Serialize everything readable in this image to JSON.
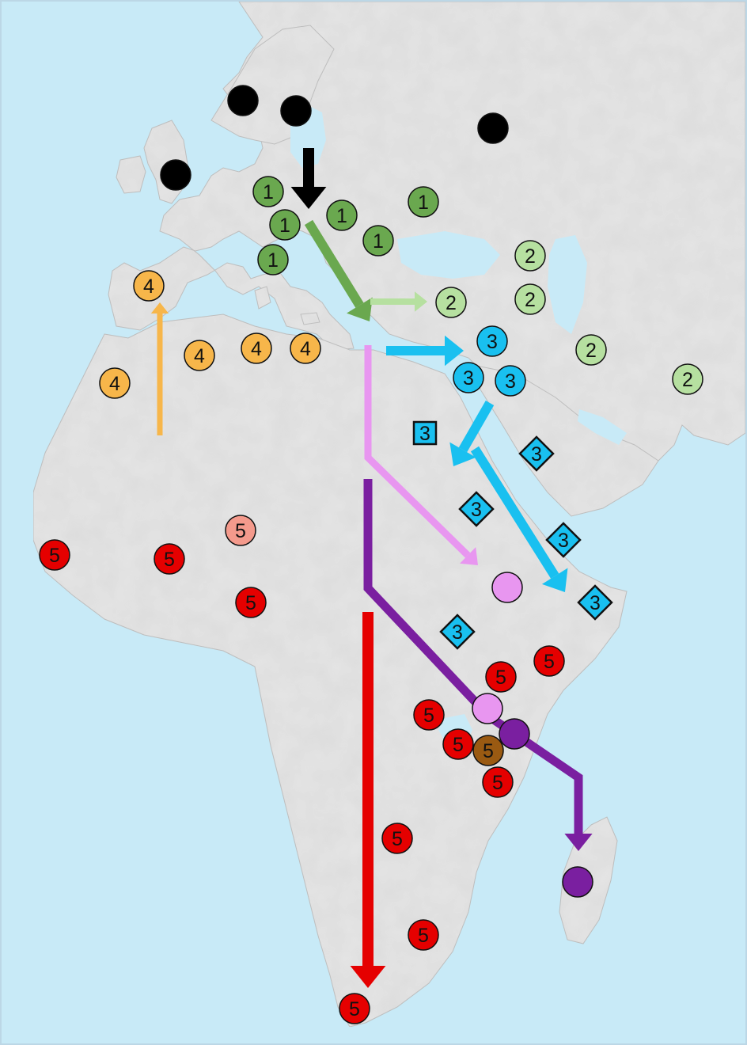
{
  "colors": {
    "ocean": "#c8eaf7",
    "land": "#e5e5e5",
    "land_shade": "#d4d4d4",
    "land_edge": "#bdbdbd",
    "black": "#000000",
    "group1": "#6aa84f",
    "group2": "#b6e0a0",
    "group3": "#19c0f0",
    "group4": "#f7b64a",
    "group5": "#e50000",
    "group5_light": "#f49a8c",
    "group5_brown": "#9a5a12",
    "pink": "#e896f0",
    "purple": "#7a1fa0"
  },
  "markers": [
    {
      "shape": "circle",
      "fill": "black",
      "label": ""
    },
    {
      "shape": "circle",
      "fill": "black",
      "label": ""
    },
    {
      "shape": "circle",
      "fill": "black",
      "label": ""
    },
    {
      "shape": "circle",
      "fill": "black",
      "label": ""
    },
    {
      "shape": "circle",
      "fill": "group1",
      "label": "1"
    },
    {
      "shape": "circle",
      "fill": "group1",
      "label": "1"
    },
    {
      "shape": "circle",
      "fill": "group1",
      "label": "1"
    },
    {
      "shape": "circle",
      "fill": "group1",
      "label": "1"
    },
    {
      "shape": "circle",
      "fill": "group1",
      "label": "1"
    },
    {
      "shape": "circle",
      "fill": "group1",
      "label": "1"
    },
    {
      "shape": "circle",
      "fill": "group2",
      "label": "2"
    },
    {
      "shape": "circle",
      "fill": "group2",
      "label": "2"
    },
    {
      "shape": "circle",
      "fill": "group2",
      "label": "2"
    },
    {
      "shape": "circle",
      "fill": "group2",
      "label": "2"
    },
    {
      "shape": "circle",
      "fill": "group2",
      "label": "2"
    },
    {
      "shape": "circle",
      "fill": "group3",
      "label": "3"
    },
    {
      "shape": "circle",
      "fill": "group3",
      "label": "3"
    },
    {
      "shape": "circle",
      "fill": "group3",
      "label": "3"
    },
    {
      "shape": "square",
      "fill": "group3",
      "label": "3"
    },
    {
      "shape": "diamond",
      "fill": "group3",
      "label": "3"
    },
    {
      "shape": "diamond",
      "fill": "group3",
      "label": "3"
    },
    {
      "shape": "diamond",
      "fill": "group3",
      "label": "3"
    },
    {
      "shape": "diamond",
      "fill": "group3",
      "label": "3"
    },
    {
      "shape": "diamond",
      "fill": "group3",
      "label": "3"
    },
    {
      "shape": "circle",
      "fill": "group4",
      "label": "4"
    },
    {
      "shape": "circle",
      "fill": "group4",
      "label": "4"
    },
    {
      "shape": "circle",
      "fill": "group4",
      "label": "4"
    },
    {
      "shape": "circle",
      "fill": "group4",
      "label": "4"
    },
    {
      "shape": "circle",
      "fill": "group4",
      "label": "4"
    },
    {
      "shape": "circle",
      "fill": "group5_light",
      "label": "5"
    },
    {
      "shape": "circle",
      "fill": "group5",
      "label": "5"
    },
    {
      "shape": "circle",
      "fill": "group5",
      "label": "5"
    },
    {
      "shape": "circle",
      "fill": "group5",
      "label": "5"
    },
    {
      "shape": "circle",
      "fill": "group5",
      "label": "5"
    },
    {
      "shape": "circle",
      "fill": "group5",
      "label": "5"
    },
    {
      "shape": "circle",
      "fill": "group5",
      "label": "5"
    },
    {
      "shape": "circle",
      "fill": "group5",
      "label": "5"
    },
    {
      "shape": "circle",
      "fill": "group5",
      "label": "5"
    },
    {
      "shape": "circle",
      "fill": "group5",
      "label": "5"
    },
    {
      "shape": "circle",
      "fill": "group5",
      "label": "5"
    },
    {
      "shape": "circle",
      "fill": "group5",
      "label": "5"
    },
    {
      "shape": "circle",
      "fill": "group5_brown",
      "label": "5"
    },
    {
      "shape": "circle",
      "fill": "pink",
      "label": ""
    },
    {
      "shape": "circle",
      "fill": "pink",
      "label": ""
    },
    {
      "shape": "circle",
      "fill": "purple",
      "label": ""
    },
    {
      "shape": "circle",
      "fill": "purple",
      "label": ""
    }
  ],
  "arrows": [
    {
      "color": "black"
    },
    {
      "color": "group1"
    },
    {
      "color": "group2"
    },
    {
      "color": "group3"
    },
    {
      "color": "group3"
    },
    {
      "color": "group3"
    },
    {
      "color": "group4"
    },
    {
      "color": "pink"
    },
    {
      "color": "purple"
    },
    {
      "color": "group5"
    }
  ]
}
